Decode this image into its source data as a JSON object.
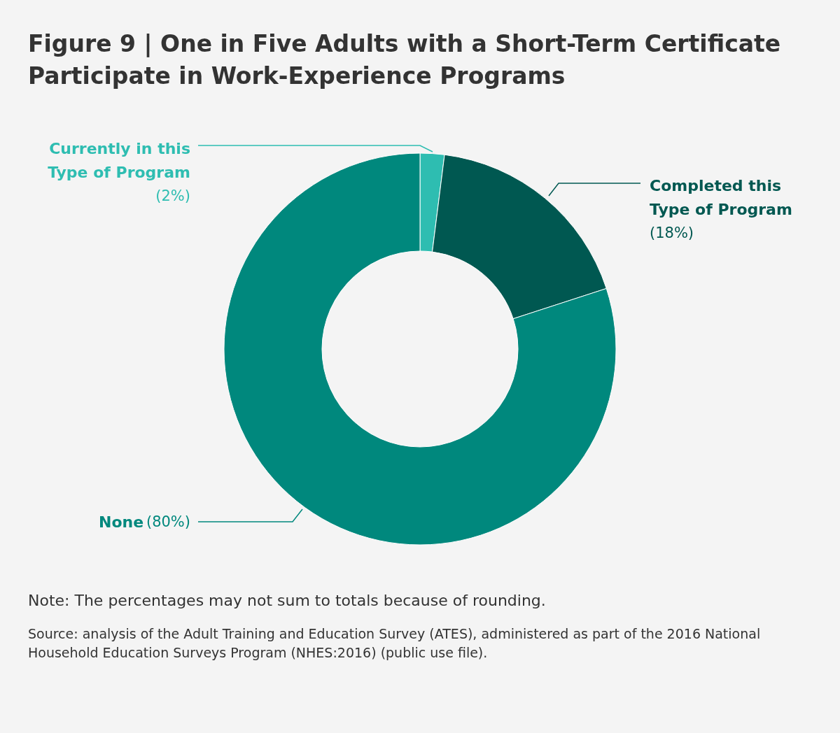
{
  "chart_data": {
    "type": "donut",
    "title": "Figure 9 | One in Five Adults with a Short-Term Certificate Participate in Work-Experience Programs",
    "categories": [
      "Currently in this Type of Program",
      "Completed this Type of Program",
      "None"
    ],
    "values": [
      2,
      18,
      80
    ],
    "value_labels": [
      "(2%)",
      "(18%)",
      "(80%)"
    ],
    "colors": [
      "#2ebdb1",
      "#005851",
      "#00887d"
    ],
    "legend": false,
    "annotations": [
      "Note: The percentages may not sum to totals because of rounding.",
      "Source: analysis of the Adult Training and Education Survey (ATES), administered as part of the 2016 National Household Education Surveys Program (NHES:2016) (public use file)."
    ]
  }
}
